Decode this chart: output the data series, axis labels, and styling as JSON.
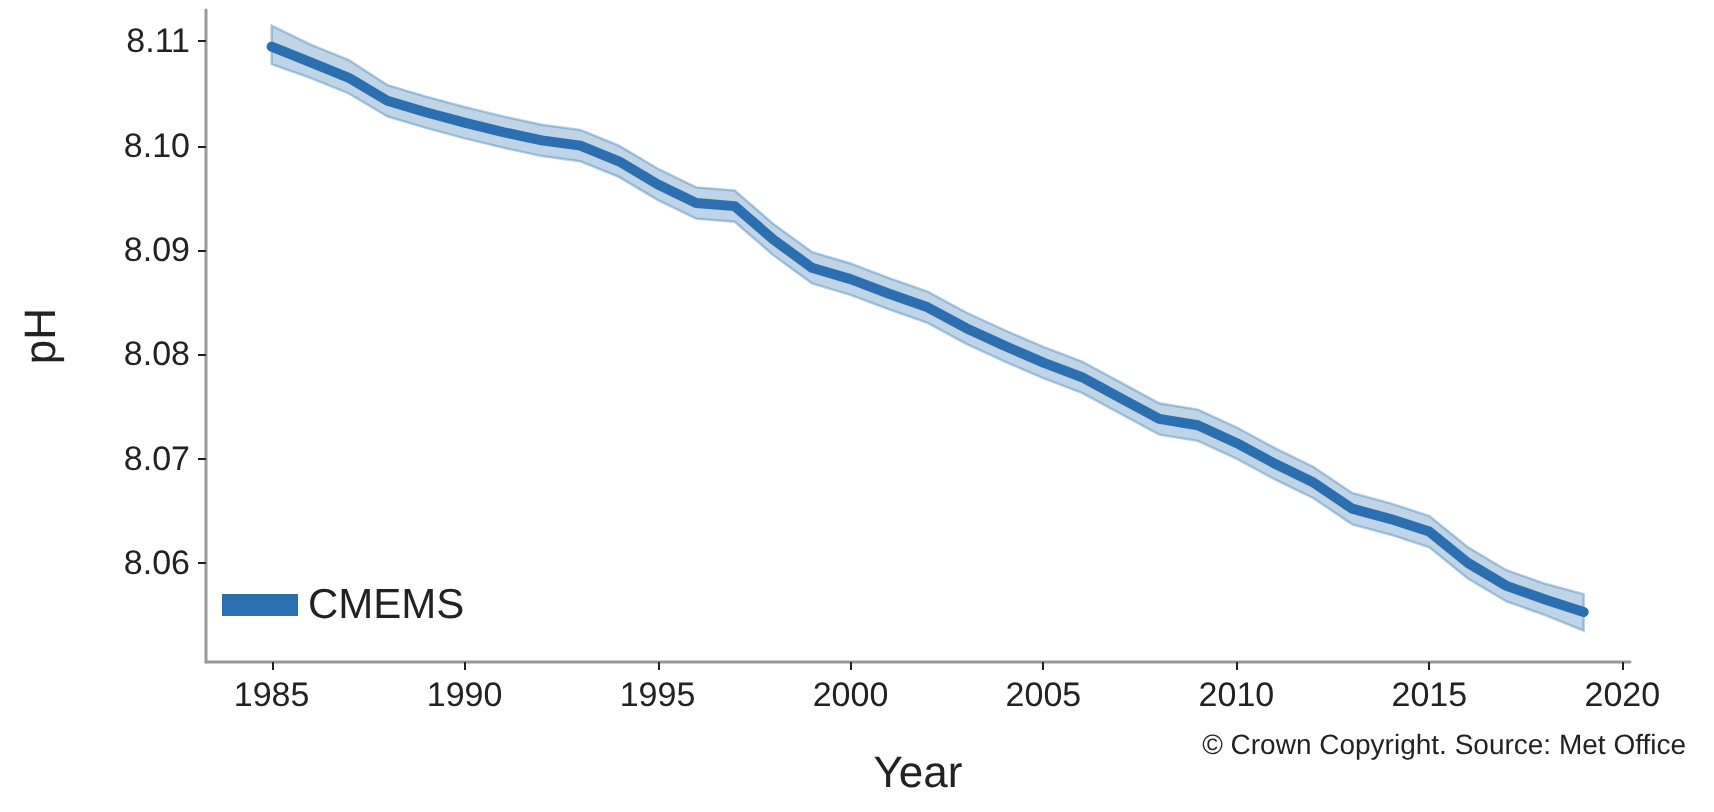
{
  "chart_data": {
    "type": "line",
    "xlabel": "Year",
    "ylabel": "pH",
    "x": [
      1985,
      1986,
      1987,
      1988,
      1989,
      1990,
      1991,
      1992,
      1993,
      1994,
      1995,
      1996,
      1997,
      1998,
      1999,
      2000,
      2001,
      2002,
      2003,
      2004,
      2005,
      2006,
      2007,
      2008,
      2009,
      2010,
      2011,
      2012,
      2013,
      2014,
      2015,
      2016,
      2017,
      2018,
      2019
    ],
    "series": [
      {
        "name": "CMEMS",
        "color": "#2b6fb0",
        "values": [
          8.1095,
          8.108,
          8.1065,
          8.1043,
          8.1032,
          8.1022,
          8.1013,
          8.1005,
          8.1,
          8.0985,
          8.0963,
          8.0945,
          8.0942,
          8.091,
          8.0883,
          8.0872,
          8.0858,
          8.0845,
          8.0825,
          8.0808,
          8.0792,
          8.0778,
          8.0758,
          8.0738,
          8.0732,
          8.0715,
          8.0695,
          8.0677,
          8.0652,
          8.0642,
          8.063,
          8.06,
          8.0578,
          8.0565,
          8.0553
        ],
        "lower": [
          8.1078,
          8.1065,
          8.105,
          8.1028,
          8.1017,
          8.1007,
          8.0998,
          8.099,
          8.0985,
          8.097,
          8.0948,
          8.093,
          8.0927,
          8.0895,
          8.0868,
          8.0857,
          8.0843,
          8.083,
          8.081,
          8.0793,
          8.0777,
          8.0763,
          8.0743,
          8.0723,
          8.0717,
          8.07,
          8.068,
          8.0662,
          8.0637,
          8.0627,
          8.0615,
          8.0585,
          8.0563,
          8.055,
          8.0535
        ],
        "upper": [
          8.1115,
          8.1097,
          8.1082,
          8.1058,
          8.1047,
          8.1037,
          8.1028,
          8.102,
          8.1015,
          8.1,
          8.0978,
          8.096,
          8.0957,
          8.0925,
          8.0898,
          8.0887,
          8.0873,
          8.086,
          8.084,
          8.0823,
          8.0807,
          8.0793,
          8.0773,
          8.0753,
          8.0747,
          8.073,
          8.071,
          8.0692,
          8.0667,
          8.0657,
          8.0645,
          8.0615,
          8.0593,
          8.058,
          8.057
        ]
      }
    ],
    "xlim": [
      1983.3,
      2020.2
    ],
    "xticks": [
      1985,
      1990,
      1995,
      2000,
      2005,
      2010,
      2015,
      2020
    ],
    "ylim": [
      8.0505,
      8.113
    ],
    "yticks": [
      8.06,
      8.07,
      8.08,
      8.09,
      {
        "value": 8.1,
        "label": "8.10"
      },
      8.11
    ],
    "grid": false,
    "legend": "bottom left",
    "marker": "none",
    "line_style": "solid",
    "annotations": [
      "© Crown Copyright. Source: Met Office"
    ]
  }
}
